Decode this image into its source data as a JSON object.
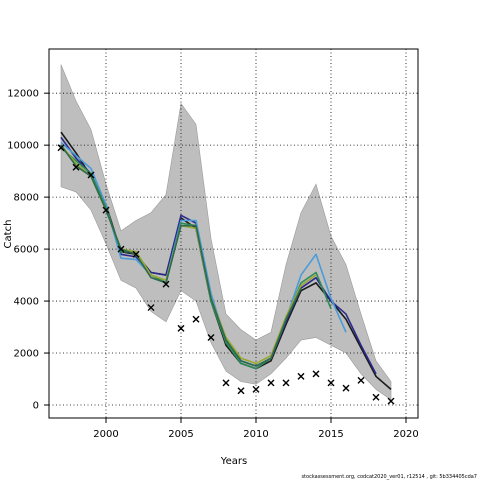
{
  "chart_data": {
    "type": "line",
    "xlabel": "Years",
    "ylabel": "Catch",
    "xlim": [
      1996.2,
      2020.8
    ],
    "ylim": [
      -500,
      13700
    ],
    "grid": true,
    "x_ticks": [
      2000,
      2005,
      2010,
      2015,
      2020
    ],
    "y_ticks": [
      0,
      2000,
      4000,
      6000,
      8000,
      10000,
      12000
    ],
    "x_tick_labels": [
      "2000",
      "2005",
      "2010",
      "2015",
      "2020"
    ],
    "y_tick_labels": [
      "0",
      "2000",
      "4000",
      "6000",
      "8000",
      "10000",
      "12000"
    ],
    "band": {
      "color": "#bebebe",
      "x": [
        1997,
        1998,
        1999,
        2000,
        2001,
        2002,
        2003,
        2004,
        2005,
        2006,
        2007,
        2008,
        2009,
        2010,
        2011,
        2012,
        2013,
        2014,
        2015,
        2016,
        2017,
        2018,
        2019
      ],
      "upper": [
        13100,
        11700,
        10600,
        8500,
        6700,
        7100,
        7400,
        8100,
        11600,
        10800,
        6400,
        3500,
        2900,
        2500,
        2800,
        5400,
        7400,
        8500,
        6500,
        5400,
        3500,
        1700,
        900
      ],
      "lower": [
        8400,
        8200,
        7500,
        6200,
        4800,
        4500,
        3600,
        3200,
        4400,
        4000,
        2400,
        1300,
        900,
        800,
        1200,
        1800,
        2500,
        2600,
        2300,
        2000,
        1200,
        600,
        200
      ]
    },
    "series": [
      {
        "color": "#1a1a1a",
        "x": [
          1997,
          1998,
          1999,
          2000,
          2001,
          2002,
          2003,
          2004,
          2005,
          2006,
          2007,
          2008,
          2009,
          2010,
          2011,
          2012,
          2013,
          2014,
          2015,
          2016,
          2017,
          2018,
          2019
        ],
        "values": [
          10500,
          9700,
          8800,
          7700,
          5900,
          5800,
          5100,
          5000,
          7200,
          6800,
          4000,
          2300,
          1600,
          1400,
          1700,
          3100,
          4400,
          4700,
          4000,
          3300,
          2200,
          1100,
          600
        ]
      },
      {
        "color": "#2b2b8c",
        "x": [
          1997,
          1998,
          1999,
          2000,
          2001,
          2002,
          2003,
          2004,
          2005,
          2006,
          2007,
          2008,
          2009,
          2010,
          2011,
          2012,
          2013,
          2014,
          2015,
          2016,
          2017,
          2018
        ],
        "values": [
          10300,
          9500,
          8900,
          7600,
          5800,
          5700,
          5100,
          5000,
          7300,
          7000,
          4200,
          2500,
          1700,
          1500,
          1800,
          3200,
          4500,
          4900,
          4000,
          3500,
          2300,
          1200
        ]
      },
      {
        "color": "#4a9bd8",
        "x": [
          1997,
          1998,
          1999,
          2000,
          2001,
          2002,
          2003,
          2004,
          2005,
          2006,
          2007,
          2008,
          2009,
          2010,
          2011,
          2012,
          2013,
          2014,
          2015,
          2016
        ],
        "values": [
          10100,
          9600,
          9100,
          7700,
          5650,
          5600,
          5000,
          4800,
          7100,
          7100,
          4300,
          2400,
          1700,
          1500,
          1800,
          3300,
          5000,
          5800,
          4100,
          2800
        ]
      },
      {
        "color": "#2e8b57",
        "x": [
          1997,
          1998,
          1999,
          2000,
          2001,
          2002,
          2003,
          2004,
          2005,
          2006,
          2007,
          2008,
          2009,
          2010,
          2011,
          2012,
          2013,
          2014,
          2015
        ],
        "values": [
          9900,
          9400,
          8900,
          7600,
          5900,
          5900,
          5000,
          4700,
          7000,
          6900,
          4000,
          2400,
          1600,
          1400,
          1800,
          3300,
          4700,
          5100,
          3700
        ]
      },
      {
        "color": "#9aa832",
        "x": [
          1997,
          1998,
          1999,
          2000,
          2001,
          2002,
          2003,
          2004,
          2005,
          2006,
          2007,
          2008,
          2009,
          2010,
          2011,
          2012,
          2013,
          2014
        ],
        "values": [
          10000,
          9300,
          8800,
          7500,
          6000,
          5900,
          5000,
          4800,
          6900,
          6800,
          4100,
          2600,
          1800,
          1600,
          1900,
          3400,
          4600,
          5000
        ]
      },
      {
        "color": "#2d6b4f",
        "x": [
          1997,
          1998,
          1999,
          2000,
          2001,
          2002,
          2003,
          2004,
          2005,
          2006,
          2007,
          2008,
          2009,
          2010,
          2011,
          2012,
          2013
        ],
        "values": [
          10000,
          9200,
          8800,
          7500,
          6000,
          5800,
          4900,
          4700,
          6900,
          6900,
          4100,
          2500,
          1700,
          1500,
          1800,
          3300,
          4500
        ]
      }
    ],
    "observed": {
      "marker": "x",
      "color": "#000000",
      "x": [
        1997,
        1998,
        1999,
        2000,
        2001,
        2002,
        2003,
        2004,
        2005,
        2006,
        2007,
        2008,
        2009,
        2010,
        2011,
        2012,
        2013,
        2014,
        2015,
        2016,
        2017,
        2018,
        2019
      ],
      "values": [
        9900,
        9150,
        8850,
        7500,
        6000,
        5800,
        3750,
        4650,
        2950,
        3300,
        2600,
        850,
        550,
        600,
        850,
        850,
        1100,
        1200,
        850,
        650,
        950,
        300,
        150
      ]
    }
  },
  "footer": "stockassessment.org, codcat2020_ver01, r12514 , git: 5b334405cda7"
}
